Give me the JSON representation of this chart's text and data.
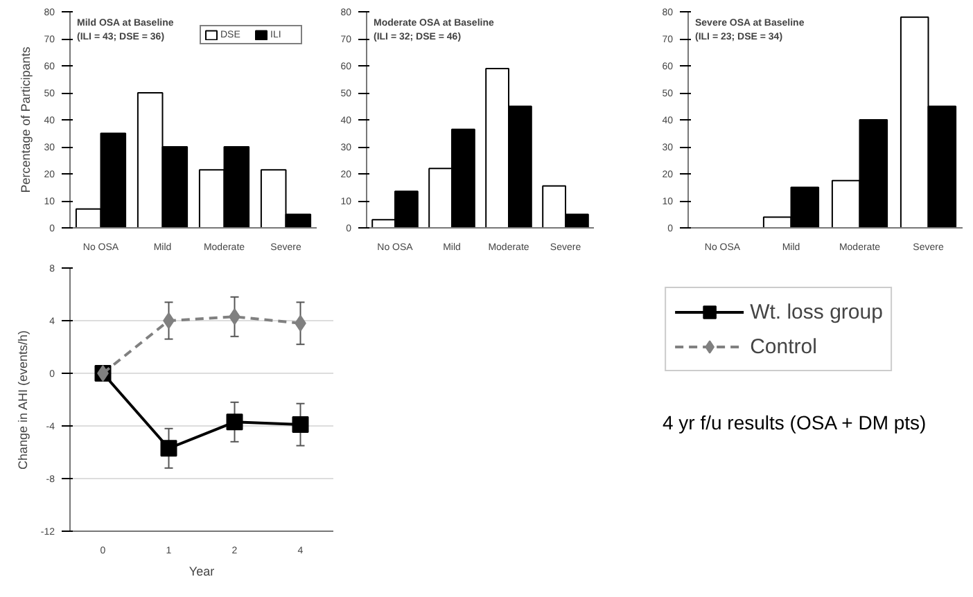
{
  "chart_data": [
    {
      "type": "bar",
      "title": "Mild OSA at Baseline",
      "subtitle": "(ILI = 43; DSE = 36)",
      "ylabel": "Percentage of Participants",
      "categories": [
        "No OSA",
        "Mild",
        "Moderate",
        "Severe"
      ],
      "ylim": [
        0,
        80
      ],
      "yticks": [
        0,
        10,
        20,
        30,
        40,
        50,
        60,
        70,
        80
      ],
      "grid": false,
      "legend": "top right",
      "series": [
        {
          "name": "DSE",
          "color": "#ffffff",
          "values": [
            7,
            50,
            21.5,
            21.5
          ]
        },
        {
          "name": "ILI",
          "color": "#000000",
          "values": [
            35,
            30,
            30,
            5
          ]
        }
      ]
    },
    {
      "type": "bar",
      "title": "Moderate OSA at Baseline",
      "subtitle": "(ILI = 32; DSE = 46)",
      "categories": [
        "No OSA",
        "Mild",
        "Moderate",
        "Severe"
      ],
      "ylim": [
        0,
        80
      ],
      "yticks": [
        0,
        10,
        20,
        30,
        40,
        50,
        60,
        70,
        80
      ],
      "grid": false,
      "series": [
        {
          "color": "#ffffff",
          "values": [
            3,
            22,
            59,
            15.5
          ]
        },
        {
          "color": "#000000",
          "values": [
            13.5,
            36.5,
            45,
            5
          ]
        }
      ]
    },
    {
      "type": "bar",
      "title": "Severe OSA at Baseline",
      "subtitle": "(ILI = 23; DSE = 34)",
      "categories": [
        "No OSA",
        "Mild",
        "Moderate",
        "Severe"
      ],
      "ylim": [
        0,
        80
      ],
      "yticks": [
        0,
        10,
        20,
        30,
        40,
        50,
        60,
        70,
        80
      ],
      "grid": false,
      "series": [
        {
          "color": "#ffffff",
          "values": [
            0,
            4,
            17.5,
            78
          ]
        },
        {
          "color": "#000000",
          "values": [
            0,
            15,
            40,
            45
          ]
        }
      ]
    },
    {
      "type": "line",
      "xlabel": "Year",
      "ylabel": "Change in AHI (events/h)",
      "categories": [
        "0",
        "1",
        "2",
        "4"
      ],
      "ylim": [
        -12,
        8
      ],
      "yticks": [
        -12,
        -8,
        -4,
        0,
        4,
        8
      ],
      "grid": "y",
      "legend": "right",
      "annotations": [
        "4 yr f/u results (OSA + DM pts)"
      ],
      "series": [
        {
          "name": "Wt. loss group",
          "color": "#000000",
          "marker": "square",
          "line_style": "solid",
          "values": [
            0,
            -5.7,
            -3.7,
            -3.9
          ],
          "errors": [
            null,
            1.5,
            1.5,
            1.6
          ]
        },
        {
          "name": "Control",
          "color": "#808080",
          "marker": "diamond",
          "line_style": "dashed",
          "values": [
            0,
            4,
            4.3,
            3.8
          ],
          "errors": [
            null,
            1.4,
            1.5,
            1.6
          ]
        }
      ]
    }
  ]
}
